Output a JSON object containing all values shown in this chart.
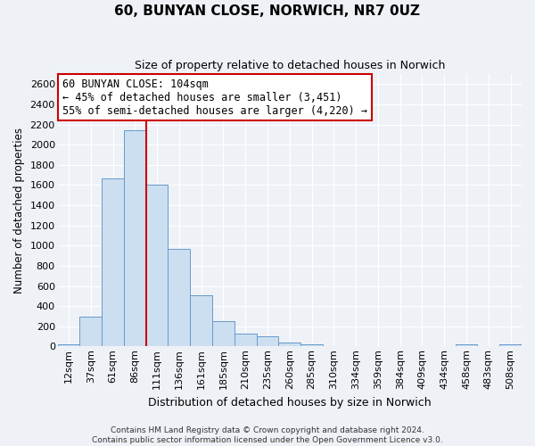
{
  "title": "60, BUNYAN CLOSE, NORWICH, NR7 0UZ",
  "subtitle": "Size of property relative to detached houses in Norwich",
  "xlabel": "Distribution of detached houses by size in Norwich",
  "ylabel": "Number of detached properties",
  "bar_labels": [
    "12sqm",
    "37sqm",
    "61sqm",
    "86sqm",
    "111sqm",
    "136sqm",
    "161sqm",
    "185sqm",
    "210sqm",
    "235sqm",
    "260sqm",
    "285sqm",
    "310sqm",
    "334sqm",
    "359sqm",
    "384sqm",
    "409sqm",
    "434sqm",
    "458sqm",
    "483sqm",
    "508sqm"
  ],
  "bar_values": [
    20,
    295,
    1670,
    2140,
    1600,
    970,
    505,
    250,
    125,
    100,
    35,
    20,
    5,
    5,
    5,
    5,
    5,
    5,
    20,
    5,
    20
  ],
  "bar_color": "#ccdff0",
  "bar_edge_color": "#6699cc",
  "marker_index": 4,
  "marker_color": "#cc0000",
  "annotation_title": "60 BUNYAN CLOSE: 104sqm",
  "annotation_line1": "← 45% of detached houses are smaller (3,451)",
  "annotation_line2": "55% of semi-detached houses are larger (4,220) →",
  "annotation_box_color": "#ffffff",
  "annotation_box_edge": "#cc0000",
  "ylim": [
    0,
    2700
  ],
  "yticks": [
    0,
    200,
    400,
    600,
    800,
    1000,
    1200,
    1400,
    1600,
    1800,
    2000,
    2200,
    2400,
    2600
  ],
  "footer1": "Contains HM Land Registry data © Crown copyright and database right 2024.",
  "footer2": "Contains public sector information licensed under the Open Government Licence v3.0.",
  "bg_color": "#eef2f7",
  "plot_bg_color": "#eef2f7",
  "grid_color": "#ffffff",
  "title_fontsize": 11,
  "subtitle_fontsize": 9,
  "xlabel_fontsize": 9,
  "ylabel_fontsize": 8.5,
  "tick_fontsize": 8,
  "annotation_fontsize": 8.5,
  "footer_fontsize": 6.5
}
